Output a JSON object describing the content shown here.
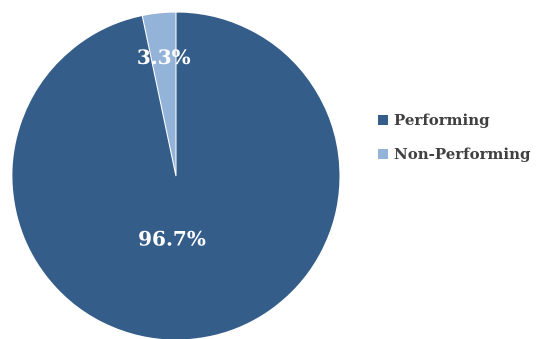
{
  "chart_data": {
    "type": "pie",
    "categories": [
      "Performing",
      "Non-Performing"
    ],
    "values": [
      96.7,
      3.3
    ],
    "data_labels": [
      "96.7%",
      "3.3%"
    ],
    "colors": [
      "#355d8a",
      "#94b3d9"
    ],
    "legend_position": "right",
    "start_angle": "top",
    "direction": "clockwise-from-top"
  }
}
